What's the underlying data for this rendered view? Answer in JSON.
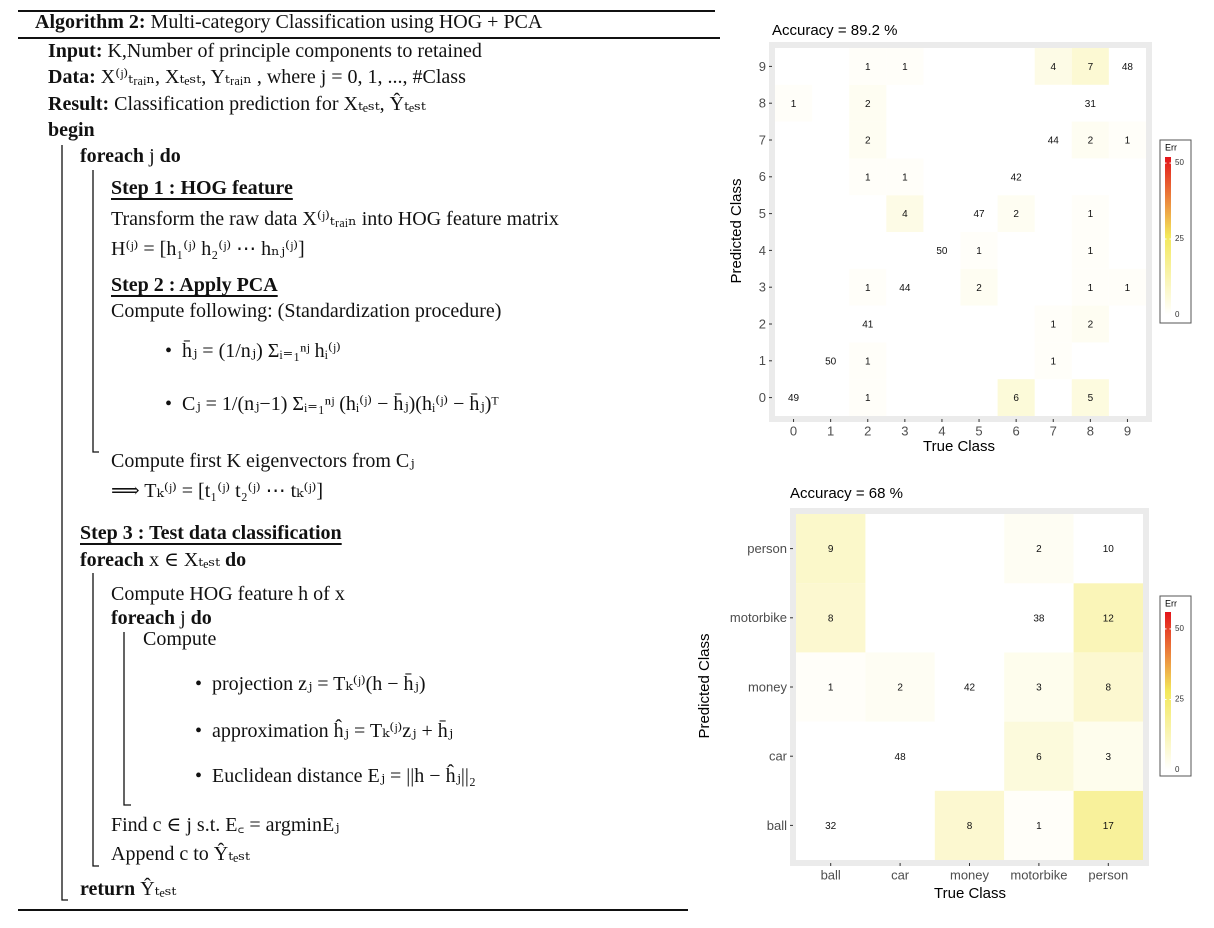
{
  "algorithm": {
    "title": {
      "bold": "Algorithm 2:",
      "text": "Multi-category Classification using HOG + PCA"
    },
    "lines": [
      {
        "bold": "Input:",
        "text": "K,Number of principle components to retained"
      },
      {
        "bold": "Data:",
        "text": "X⁽ʲ⁾ₜᵣₐᵢₙ, Xₜₑₛₜ, Yₜᵣₐᵢₙ , where j = 0, 1, ..., #Class"
      },
      {
        "bold": "Result:",
        "text": "Classification prediction for Xₜₑₛₜ, Ŷₜₑₛₜ"
      },
      {
        "bold": "begin"
      },
      {
        "bold": "foreach",
        "text": "j",
        "bold_end": "do"
      },
      {
        "heading": "Step 1 : HOG feature"
      },
      {
        "text": "Transform the raw data X⁽ʲ⁾ₜᵣₐᵢₙ into HOG feature matrix"
      },
      {
        "text": "H⁽ʲ⁾ = [h₁⁽ʲ⁾ h₂⁽ʲ⁾ ⋯ hₙⱼ⁽ʲ⁾]"
      },
      {
        "heading": "Step 2 : Apply PCA"
      },
      {
        "text": "Compute following: (Standardization procedure)"
      },
      {
        "text": "h̄ⱼ = (1/nⱼ) Σᵢ₌₁ⁿʲ hᵢ⁽ʲ⁾"
      },
      {
        "text": "Cⱼ = 1/(nⱼ−1) Σᵢ₌₁ⁿʲ (hᵢ⁽ʲ⁾ − h̄ⱼ)(hᵢ⁽ʲ⁾ − h̄ⱼ)ᵀ"
      },
      {
        "text": "Compute first K eigenvectors from Cⱼ"
      },
      {
        "text": "⟹ Tₖ⁽ʲ⁾ = [t₁⁽ʲ⁾ t₂⁽ʲ⁾ ⋯ tₖ⁽ʲ⁾]"
      },
      {
        "heading": "Step 3 : Test data classification"
      },
      {
        "bold": "foreach",
        "text": "x ∈ Xₜₑₛₜ",
        "bold_end": "do"
      },
      {
        "text": "Compute HOG feature h of x"
      },
      {
        "bold": "foreach",
        "text": "j",
        "bold_end": "do"
      },
      {
        "text": "Compute"
      },
      {
        "text": "projection zⱼ = Tₖ⁽ʲ⁾(h − h̄ⱼ)"
      },
      {
        "text": "approximation ĥⱼ = Tₖ⁽ʲ⁾zⱼ + h̄ⱼ"
      },
      {
        "text": "Euclidean distance Eⱼ = ||h − ĥⱼ||₂"
      },
      {
        "text": "Find c ∈ j s.t.  E꜀ = argminEⱼ"
      },
      {
        "text": "Append c to Ŷₜₑₛₜ"
      },
      {
        "bold": "return",
        "text": "Ŷₜₑₛₜ"
      }
    ]
  },
  "chart_data": [
    {
      "type": "heatmap",
      "title": "Accuracy =  89.2 %",
      "x_label": "True Class",
      "y_label": "Predicted Class",
      "x_categories": [
        "0",
        "1",
        "2",
        "3",
        "4",
        "5",
        "6",
        "7",
        "8",
        "9"
      ],
      "y_categories": [
        "0",
        "1",
        "2",
        "3",
        "4",
        "5",
        "6",
        "7",
        "8",
        "9"
      ],
      "values": [
        [
          49,
          null,
          1,
          null,
          null,
          null,
          6,
          null,
          5,
          null
        ],
        [
          null,
          50,
          1,
          null,
          null,
          null,
          null,
          1,
          null,
          null
        ],
        [
          null,
          null,
          41,
          null,
          null,
          null,
          null,
          1,
          2,
          null
        ],
        [
          null,
          null,
          1,
          44,
          null,
          2,
          null,
          null,
          1,
          1
        ],
        [
          null,
          null,
          null,
          null,
          50,
          1,
          null,
          null,
          1,
          null
        ],
        [
          null,
          null,
          null,
          4,
          null,
          47,
          2,
          null,
          1,
          null
        ],
        [
          null,
          null,
          1,
          1,
          null,
          null,
          42,
          null,
          null,
          null
        ],
        [
          null,
          null,
          2,
          null,
          null,
          null,
          null,
          44,
          2,
          1
        ],
        [
          1,
          null,
          2,
          null,
          null,
          null,
          null,
          null,
          31,
          null
        ],
        [
          null,
          null,
          1,
          1,
          null,
          null,
          null,
          4,
          7,
          48
        ]
      ],
      "diagonal_fill": "#ffffff",
      "colors": [
        "#ffffff",
        "#f3e85a",
        "#e3141a"
      ],
      "colorbar": {
        "title": "Err",
        "lim": [
          0,
          52
        ],
        "ticks": [
          0,
          25,
          50
        ]
      }
    },
    {
      "type": "heatmap",
      "title": "Accuracy =  68 %",
      "x_label": "True Class",
      "y_label": "Predicted Class",
      "x_categories": [
        "ball",
        "car",
        "money",
        "motorbike",
        "person"
      ],
      "y_categories": [
        "ball",
        "car",
        "money",
        "motorbike",
        "person"
      ],
      "values": [
        [
          32,
          null,
          8,
          1,
          17
        ],
        [
          null,
          48,
          null,
          6,
          3
        ],
        [
          1,
          2,
          42,
          3,
          8
        ],
        [
          8,
          null,
          null,
          38,
          12
        ],
        [
          9,
          null,
          null,
          2,
          10
        ]
      ],
      "diagonal_fill": "#ffffff",
      "colors": [
        "#ffffff",
        "#f3e85a",
        "#e3141a"
      ],
      "colorbar": {
        "title": "Err",
        "lim": [
          0,
          56
        ],
        "ticks": [
          0,
          25,
          50
        ]
      }
    }
  ]
}
